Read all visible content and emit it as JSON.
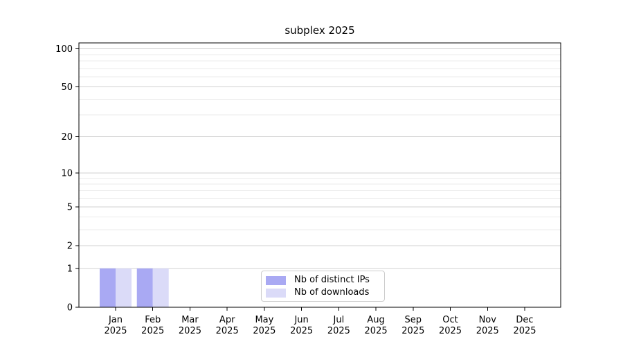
{
  "title": "subplex 2025",
  "chart_data": {
    "type": "bar",
    "title": "subplex 2025",
    "categories": [
      "Jan",
      "Feb",
      "Mar",
      "Apr",
      "May",
      "Jun",
      "Jul",
      "Aug",
      "Sep",
      "Oct",
      "Nov",
      "Dec"
    ],
    "x_year_label": "2025",
    "series": [
      {
        "name": "Nb of distinct IPs",
        "color": "#a9a9f3",
        "values": [
          1,
          1,
          0,
          0,
          0,
          0,
          0,
          0,
          0,
          0,
          0,
          0
        ]
      },
      {
        "name": "Nb of downloads",
        "color": "#dbdbf8",
        "values": [
          1,
          1,
          0,
          0,
          0,
          0,
          0,
          0,
          0,
          0,
          0,
          0
        ]
      }
    ],
    "yscale": "log1p",
    "ylim": [
      0,
      111
    ],
    "y_major_ticks": [
      0,
      1,
      2,
      5,
      10,
      20,
      50,
      100
    ],
    "y_minor_ticks": [
      3,
      4,
      6,
      7,
      8,
      9,
      30,
      40,
      60,
      70,
      80,
      90
    ],
    "grid": "horizontal",
    "legend_position": "bottom-center"
  },
  "legend": {
    "items": [
      {
        "label": "Nb of distinct IPs",
        "color": "#a9a9f3"
      },
      {
        "label": "Nb of downloads",
        "color": "#dbdbf8"
      }
    ]
  },
  "colors": {
    "frame": "#000000",
    "tick_text": "#000000",
    "grid_major": "#d0d0d0",
    "grid_minor": "#ebebeb",
    "legend_border": "#cccccc",
    "background": "#ffffff"
  }
}
